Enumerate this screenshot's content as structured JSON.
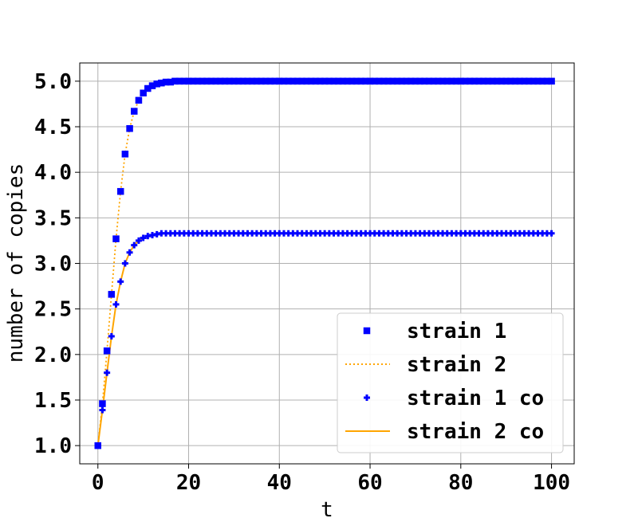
{
  "chart_data": {
    "type": "line",
    "xlabel": "t",
    "ylabel": "number of copies",
    "xlim": [
      -4,
      105
    ],
    "ylim": [
      0.8,
      5.2
    ],
    "xticks": [
      0,
      20,
      40,
      60,
      80,
      100
    ],
    "yticks": [
      1.0,
      1.5,
      2.0,
      2.5,
      3.0,
      3.5,
      4.0,
      4.5,
      5.0
    ],
    "xtick_labels": [
      "0",
      "20",
      "40",
      "60",
      "80",
      "100"
    ],
    "ytick_labels": [
      "1.0",
      "1.5",
      "2.0",
      "2.5",
      "3.0",
      "3.5",
      "4.0",
      "4.5",
      "5.0"
    ],
    "grid": true,
    "legend_position": "lower-right",
    "x": [
      0,
      1,
      2,
      3,
      4,
      5,
      6,
      7,
      8,
      9,
      10,
      11,
      12,
      13,
      14,
      15,
      16,
      17,
      18,
      19,
      20,
      21,
      22,
      23,
      24,
      25,
      26,
      27,
      28,
      29,
      30,
      31,
      32,
      33,
      34,
      35,
      36,
      37,
      38,
      39,
      40,
      41,
      42,
      43,
      44,
      45,
      46,
      47,
      48,
      49,
      50,
      51,
      52,
      53,
      54,
      55,
      56,
      57,
      58,
      59,
      60,
      61,
      62,
      63,
      64,
      65,
      66,
      67,
      68,
      69,
      70,
      71,
      72,
      73,
      74,
      75,
      76,
      77,
      78,
      79,
      80,
      81,
      82,
      83,
      84,
      85,
      86,
      87,
      88,
      89,
      90,
      91,
      92,
      93,
      94,
      95,
      96,
      97,
      98,
      99,
      100
    ],
    "series": [
      {
        "name": "strain 1",
        "style": "square-markers",
        "color": "#0000ff",
        "values": [
          1.0,
          1.46,
          2.04,
          2.66,
          3.27,
          3.79,
          4.2,
          4.48,
          4.67,
          4.79,
          4.87,
          4.92,
          4.95,
          4.97,
          4.98,
          4.99,
          4.99,
          5.0,
          5.0,
          5.0,
          5.0,
          5.0,
          5.0,
          5.0,
          5.0,
          5.0,
          5.0,
          5.0,
          5.0,
          5.0,
          5.0,
          5.0,
          5.0,
          5.0,
          5.0,
          5.0,
          5.0,
          5.0,
          5.0,
          5.0,
          5.0,
          5.0,
          5.0,
          5.0,
          5.0,
          5.0,
          5.0,
          5.0,
          5.0,
          5.0,
          5.0,
          5.0,
          5.0,
          5.0,
          5.0,
          5.0,
          5.0,
          5.0,
          5.0,
          5.0,
          5.0,
          5.0,
          5.0,
          5.0,
          5.0,
          5.0,
          5.0,
          5.0,
          5.0,
          5.0,
          5.0,
          5.0,
          5.0,
          5.0,
          5.0,
          5.0,
          5.0,
          5.0,
          5.0,
          5.0,
          5.0,
          5.0,
          5.0,
          5.0,
          5.0,
          5.0,
          5.0,
          5.0,
          5.0,
          5.0,
          5.0,
          5.0,
          5.0,
          5.0,
          5.0,
          5.0,
          5.0,
          5.0,
          5.0,
          5.0,
          5.0
        ]
      },
      {
        "name": "strain 2",
        "style": "dotted-line",
        "color": "#ffa500",
        "values": [
          1.0,
          1.46,
          2.04,
          2.66,
          3.27,
          3.79,
          4.2,
          4.48,
          4.67,
          4.79,
          4.87,
          4.92,
          4.95,
          4.97,
          4.98,
          4.99,
          4.99,
          5.0,
          5.0,
          5.0,
          5.0,
          5.0,
          5.0,
          5.0,
          5.0,
          5.0,
          5.0,
          5.0,
          5.0,
          5.0,
          5.0,
          5.0,
          5.0,
          5.0,
          5.0,
          5.0,
          5.0,
          5.0,
          5.0,
          5.0,
          5.0,
          5.0,
          5.0,
          5.0,
          5.0,
          5.0,
          5.0,
          5.0,
          5.0,
          5.0,
          5.0,
          5.0,
          5.0,
          5.0,
          5.0,
          5.0,
          5.0,
          5.0,
          5.0,
          5.0,
          5.0,
          5.0,
          5.0,
          5.0,
          5.0,
          5.0,
          5.0,
          5.0,
          5.0,
          5.0,
          5.0,
          5.0,
          5.0,
          5.0,
          5.0,
          5.0,
          5.0,
          5.0,
          5.0,
          5.0,
          5.0,
          5.0,
          5.0,
          5.0,
          5.0,
          5.0,
          5.0,
          5.0,
          5.0,
          5.0,
          5.0,
          5.0,
          5.0,
          5.0,
          5.0,
          5.0,
          5.0,
          5.0,
          5.0,
          5.0,
          5.0
        ]
      },
      {
        "name": "strain 1 co",
        "style": "plus-markers",
        "color": "#0000ff",
        "values": [
          1.0,
          1.39,
          1.8,
          2.2,
          2.55,
          2.8,
          3.0,
          3.12,
          3.2,
          3.25,
          3.28,
          3.3,
          3.31,
          3.32,
          3.33,
          3.33,
          3.33,
          3.33,
          3.33,
          3.33,
          3.33,
          3.33,
          3.33,
          3.33,
          3.33,
          3.33,
          3.33,
          3.33,
          3.33,
          3.33,
          3.33,
          3.33,
          3.33,
          3.33,
          3.33,
          3.33,
          3.33,
          3.33,
          3.33,
          3.33,
          3.33,
          3.33,
          3.33,
          3.33,
          3.33,
          3.33,
          3.33,
          3.33,
          3.33,
          3.33,
          3.33,
          3.33,
          3.33,
          3.33,
          3.33,
          3.33,
          3.33,
          3.33,
          3.33,
          3.33,
          3.33,
          3.33,
          3.33,
          3.33,
          3.33,
          3.33,
          3.33,
          3.33,
          3.33,
          3.33,
          3.33,
          3.33,
          3.33,
          3.33,
          3.33,
          3.33,
          3.33,
          3.33,
          3.33,
          3.33,
          3.33,
          3.33,
          3.33,
          3.33,
          3.33,
          3.33,
          3.33,
          3.33,
          3.33,
          3.33,
          3.33,
          3.33,
          3.33,
          3.33,
          3.33,
          3.33,
          3.33,
          3.33,
          3.33,
          3.33,
          3.33
        ]
      },
      {
        "name": "strain 2 co",
        "style": "solid-line",
        "color": "#ffa500",
        "values": [
          1.0,
          1.39,
          1.8,
          2.2,
          2.55,
          2.8,
          3.0,
          3.12,
          3.2,
          3.25,
          3.28,
          3.3,
          3.31,
          3.32,
          3.33,
          3.33,
          3.33,
          3.33,
          3.33,
          3.33,
          3.33,
          3.33,
          3.33,
          3.33,
          3.33,
          3.33,
          3.33,
          3.33,
          3.33,
          3.33,
          3.33,
          3.33,
          3.33,
          3.33,
          3.33,
          3.33,
          3.33,
          3.33,
          3.33,
          3.33,
          3.33,
          3.33,
          3.33,
          3.33,
          3.33,
          3.33,
          3.33,
          3.33,
          3.33,
          3.33,
          3.33,
          3.33,
          3.33,
          3.33,
          3.33,
          3.33,
          3.33,
          3.33,
          3.33,
          3.33,
          3.33,
          3.33,
          3.33,
          3.33,
          3.33,
          3.33,
          3.33,
          3.33,
          3.33,
          3.33,
          3.33,
          3.33,
          3.33,
          3.33,
          3.33,
          3.33,
          3.33,
          3.33,
          3.33,
          3.33,
          3.33,
          3.33,
          3.33,
          3.33,
          3.33,
          3.33,
          3.33,
          3.33,
          3.33,
          3.33,
          3.33,
          3.33,
          3.33,
          3.33,
          3.33,
          3.33,
          3.33,
          3.33,
          3.33,
          3.33,
          3.33
        ]
      }
    ]
  }
}
